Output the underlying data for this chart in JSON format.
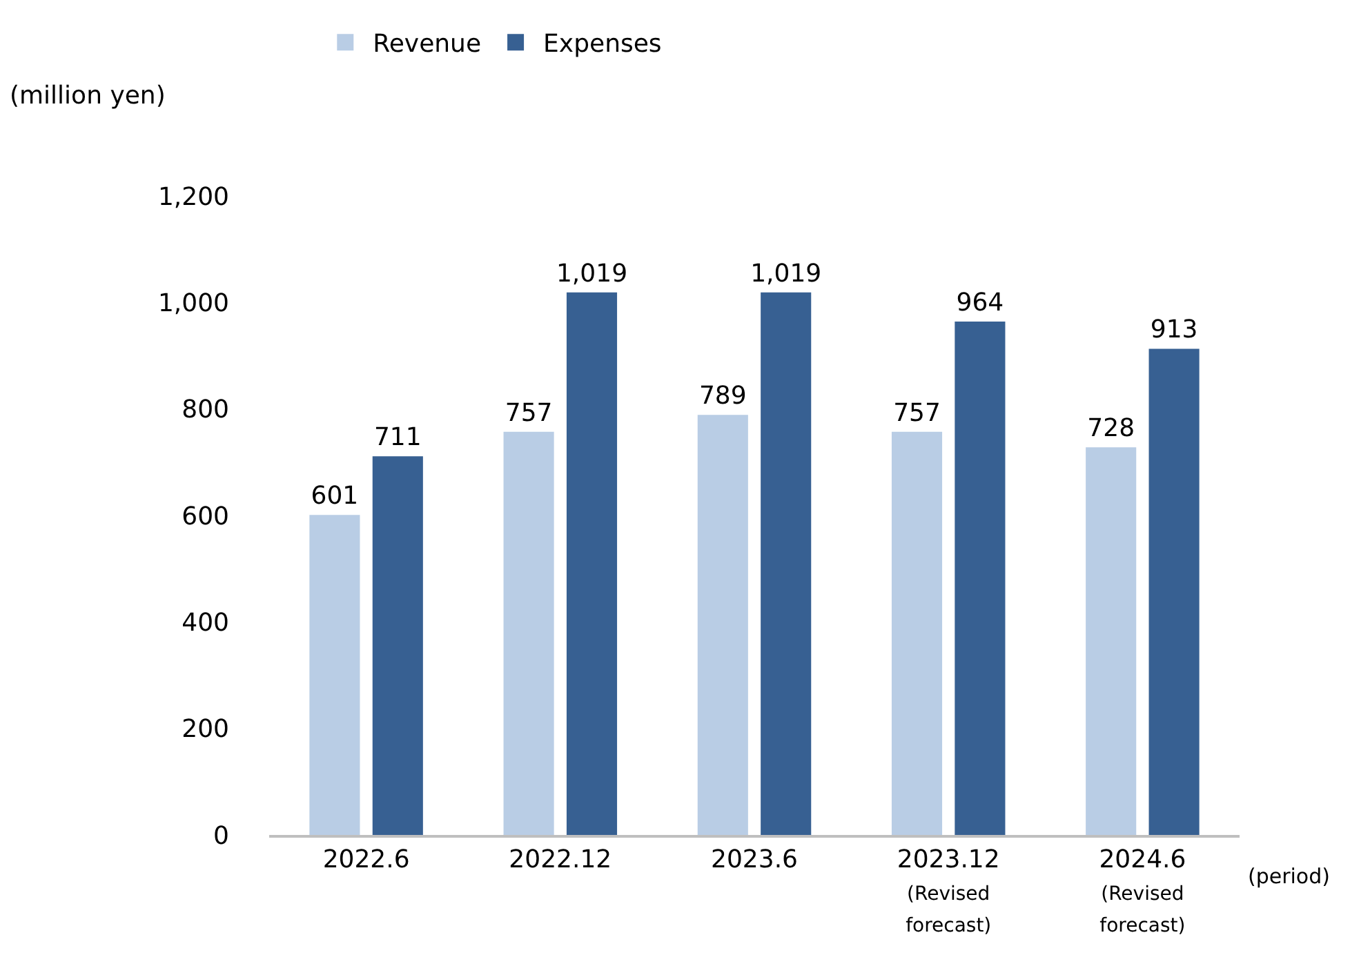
{
  "chart_data": {
    "type": "bar",
    "ylabel": "(million yen)",
    "xlabel": "(period)",
    "categories": [
      "2022.6",
      "2022.12",
      "2023.6",
      "2023.12\n(Revised\nforecast)",
      "2024.6\n(Revised\nforecast)"
    ],
    "series": [
      {
        "name": "Revenue",
        "color": "#b9cde5",
        "values": [
          601,
          757,
          789,
          757,
          728
        ],
        "value_labels": [
          "601",
          "757",
          "789",
          "757",
          "728"
        ]
      },
      {
        "name": "Expenses",
        "color": "#376092",
        "values": [
          711,
          1019,
          1019,
          964,
          913
        ],
        "value_labels": [
          "711",
          "1,019",
          "1,019",
          "964",
          "913"
        ]
      }
    ],
    "ylim": [
      0,
      1200
    ],
    "yticks": [
      0,
      200,
      400,
      600,
      800,
      {
        "value": 1000,
        "label": "1,000"
      },
      {
        "value": 1200,
        "label": "1,200"
      }
    ],
    "grid": false,
    "legend": "top"
  }
}
